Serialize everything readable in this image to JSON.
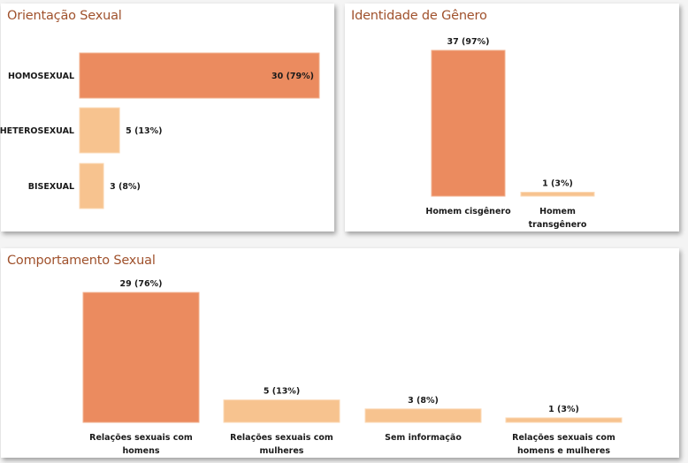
{
  "colors": {
    "primary": "#eb8b5f",
    "secondary": "#f7c38f",
    "title": "#a0522d",
    "stroke_primary": "#f2b08f",
    "stroke_secondary": "#fbd9b6"
  },
  "chart_data": [
    {
      "id": "orientacao",
      "type": "bar",
      "orientation": "horizontal",
      "title": "Orientação Sexual",
      "categories": [
        "HOMOSEXUAL",
        "HETEROSEXUAL",
        "BISEXUAL"
      ],
      "values": [
        30,
        5,
        3
      ],
      "percents": [
        79,
        13,
        8
      ],
      "labels": [
        "30 (79%)",
        "5 (13%)",
        "3 (8%)"
      ],
      "highlight": [
        true,
        false,
        false
      ],
      "xlabel": "",
      "ylabel": "",
      "xlim": [
        0,
        30
      ],
      "grid": false
    },
    {
      "id": "identidade",
      "type": "bar",
      "orientation": "vertical",
      "title": "Identidade de Gênero",
      "categories": [
        [
          "Homem cisgênero"
        ],
        [
          "Homem",
          "transgênero"
        ]
      ],
      "values": [
        37,
        1
      ],
      "percents": [
        97,
        3
      ],
      "labels": [
        "37 (97%)",
        "1 (3%)"
      ],
      "highlight": [
        true,
        false
      ],
      "xlabel": "",
      "ylabel": "",
      "ylim": [
        0,
        37
      ],
      "grid": false
    },
    {
      "id": "comportamento",
      "type": "bar",
      "orientation": "vertical",
      "title": "Comportamento Sexual",
      "categories": [
        [
          "Relações sexuais com",
          "homens"
        ],
        [
          "Relações sexuais com",
          "mulheres"
        ],
        [
          "Sem informação"
        ],
        [
          "Relações sexuais com",
          "homens e mulheres"
        ]
      ],
      "values": [
        29,
        5,
        3,
        1
      ],
      "percents": [
        76,
        13,
        8,
        3
      ],
      "labels": [
        "29 (76%)",
        "5 (13%)",
        "3 (8%)",
        "1 (3%)"
      ],
      "highlight": [
        true,
        false,
        false,
        false
      ],
      "xlabel": "",
      "ylabel": "",
      "ylim": [
        0,
        29
      ],
      "grid": false
    }
  ]
}
